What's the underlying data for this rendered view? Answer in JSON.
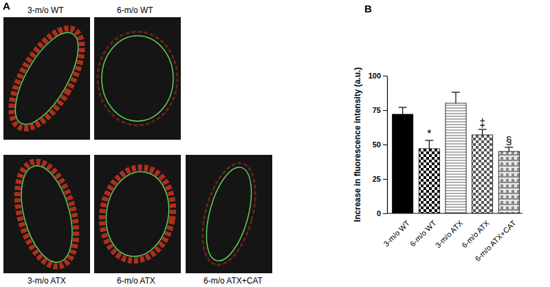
{
  "panels": {
    "a": "A",
    "b": "B"
  },
  "images": [
    "3-m/o WT",
    "6-m/o WT",
    "3-m/o ATX",
    "6-m/o ATX",
    "6-m/o ATX+CAT"
  ],
  "chart_data": {
    "type": "bar",
    "y_label": "Increase in fluorescence intensity (a.u.)",
    "categories": [
      "3-m/o WT",
      "6-m/o WT",
      "3-m/o ATX",
      "6-m/o ATX",
      "6-m/o ATX+CAT"
    ],
    "values": [
      72,
      47,
      80,
      57,
      45
    ],
    "errors": [
      5,
      6,
      8,
      4,
      3
    ],
    "colors": [
      "#000000",
      "#000000",
      "#b0b0b0",
      "#555555",
      "#8a8a8a"
    ],
    "ylim": [
      0,
      100
    ],
    "yticks": [
      0,
      25,
      50,
      75,
      100
    ],
    "grid": false,
    "annotations": [
      {
        "text": "*",
        "category": "6-m/o WT"
      },
      {
        "text": "‡",
        "category": "6-m/o ATX"
      },
      {
        "text": "§",
        "category": "6-m/o ATX+CAT"
      }
    ]
  }
}
